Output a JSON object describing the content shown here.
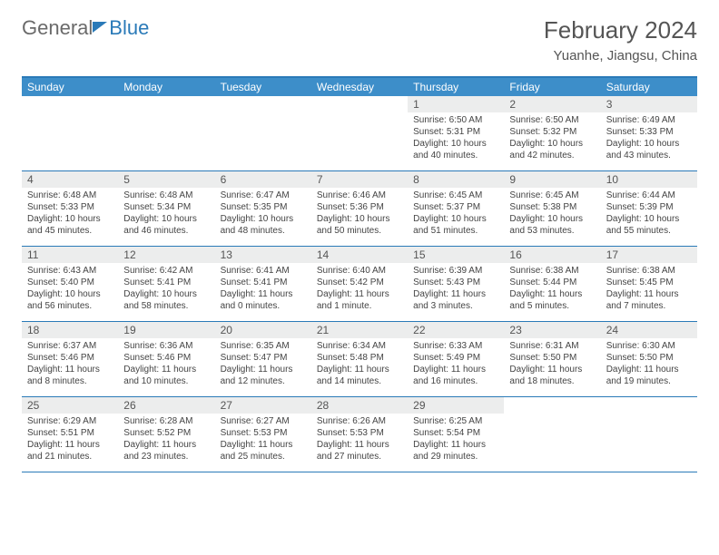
{
  "logo": {
    "text1": "General",
    "text2": "Blue"
  },
  "title": "February 2024",
  "location": "Yuanhe, Jiangsu, China",
  "dayNames": [
    "Sunday",
    "Monday",
    "Tuesday",
    "Wednesday",
    "Thursday",
    "Friday",
    "Saturday"
  ],
  "colors": {
    "header_bar": "#3d8ec9",
    "accent": "#2a7ab8",
    "daynum_bg": "#eceded",
    "text": "#555555"
  },
  "weeks": [
    [
      {
        "n": "",
        "sunrise": "",
        "sunset": "",
        "daylight": ""
      },
      {
        "n": "",
        "sunrise": "",
        "sunset": "",
        "daylight": ""
      },
      {
        "n": "",
        "sunrise": "",
        "sunset": "",
        "daylight": ""
      },
      {
        "n": "",
        "sunrise": "",
        "sunset": "",
        "daylight": ""
      },
      {
        "n": "1",
        "sunrise": "Sunrise: 6:50 AM",
        "sunset": "Sunset: 5:31 PM",
        "daylight": "Daylight: 10 hours and 40 minutes."
      },
      {
        "n": "2",
        "sunrise": "Sunrise: 6:50 AM",
        "sunset": "Sunset: 5:32 PM",
        "daylight": "Daylight: 10 hours and 42 minutes."
      },
      {
        "n": "3",
        "sunrise": "Sunrise: 6:49 AM",
        "sunset": "Sunset: 5:33 PM",
        "daylight": "Daylight: 10 hours and 43 minutes."
      }
    ],
    [
      {
        "n": "4",
        "sunrise": "Sunrise: 6:48 AM",
        "sunset": "Sunset: 5:33 PM",
        "daylight": "Daylight: 10 hours and 45 minutes."
      },
      {
        "n": "5",
        "sunrise": "Sunrise: 6:48 AM",
        "sunset": "Sunset: 5:34 PM",
        "daylight": "Daylight: 10 hours and 46 minutes."
      },
      {
        "n": "6",
        "sunrise": "Sunrise: 6:47 AM",
        "sunset": "Sunset: 5:35 PM",
        "daylight": "Daylight: 10 hours and 48 minutes."
      },
      {
        "n": "7",
        "sunrise": "Sunrise: 6:46 AM",
        "sunset": "Sunset: 5:36 PM",
        "daylight": "Daylight: 10 hours and 50 minutes."
      },
      {
        "n": "8",
        "sunrise": "Sunrise: 6:45 AM",
        "sunset": "Sunset: 5:37 PM",
        "daylight": "Daylight: 10 hours and 51 minutes."
      },
      {
        "n": "9",
        "sunrise": "Sunrise: 6:45 AM",
        "sunset": "Sunset: 5:38 PM",
        "daylight": "Daylight: 10 hours and 53 minutes."
      },
      {
        "n": "10",
        "sunrise": "Sunrise: 6:44 AM",
        "sunset": "Sunset: 5:39 PM",
        "daylight": "Daylight: 10 hours and 55 minutes."
      }
    ],
    [
      {
        "n": "11",
        "sunrise": "Sunrise: 6:43 AM",
        "sunset": "Sunset: 5:40 PM",
        "daylight": "Daylight: 10 hours and 56 minutes."
      },
      {
        "n": "12",
        "sunrise": "Sunrise: 6:42 AM",
        "sunset": "Sunset: 5:41 PM",
        "daylight": "Daylight: 10 hours and 58 minutes."
      },
      {
        "n": "13",
        "sunrise": "Sunrise: 6:41 AM",
        "sunset": "Sunset: 5:41 PM",
        "daylight": "Daylight: 11 hours and 0 minutes."
      },
      {
        "n": "14",
        "sunrise": "Sunrise: 6:40 AM",
        "sunset": "Sunset: 5:42 PM",
        "daylight": "Daylight: 11 hours and 1 minute."
      },
      {
        "n": "15",
        "sunrise": "Sunrise: 6:39 AM",
        "sunset": "Sunset: 5:43 PM",
        "daylight": "Daylight: 11 hours and 3 minutes."
      },
      {
        "n": "16",
        "sunrise": "Sunrise: 6:38 AM",
        "sunset": "Sunset: 5:44 PM",
        "daylight": "Daylight: 11 hours and 5 minutes."
      },
      {
        "n": "17",
        "sunrise": "Sunrise: 6:38 AM",
        "sunset": "Sunset: 5:45 PM",
        "daylight": "Daylight: 11 hours and 7 minutes."
      }
    ],
    [
      {
        "n": "18",
        "sunrise": "Sunrise: 6:37 AM",
        "sunset": "Sunset: 5:46 PM",
        "daylight": "Daylight: 11 hours and 8 minutes."
      },
      {
        "n": "19",
        "sunrise": "Sunrise: 6:36 AM",
        "sunset": "Sunset: 5:46 PM",
        "daylight": "Daylight: 11 hours and 10 minutes."
      },
      {
        "n": "20",
        "sunrise": "Sunrise: 6:35 AM",
        "sunset": "Sunset: 5:47 PM",
        "daylight": "Daylight: 11 hours and 12 minutes."
      },
      {
        "n": "21",
        "sunrise": "Sunrise: 6:34 AM",
        "sunset": "Sunset: 5:48 PM",
        "daylight": "Daylight: 11 hours and 14 minutes."
      },
      {
        "n": "22",
        "sunrise": "Sunrise: 6:33 AM",
        "sunset": "Sunset: 5:49 PM",
        "daylight": "Daylight: 11 hours and 16 minutes."
      },
      {
        "n": "23",
        "sunrise": "Sunrise: 6:31 AM",
        "sunset": "Sunset: 5:50 PM",
        "daylight": "Daylight: 11 hours and 18 minutes."
      },
      {
        "n": "24",
        "sunrise": "Sunrise: 6:30 AM",
        "sunset": "Sunset: 5:50 PM",
        "daylight": "Daylight: 11 hours and 19 minutes."
      }
    ],
    [
      {
        "n": "25",
        "sunrise": "Sunrise: 6:29 AM",
        "sunset": "Sunset: 5:51 PM",
        "daylight": "Daylight: 11 hours and 21 minutes."
      },
      {
        "n": "26",
        "sunrise": "Sunrise: 6:28 AM",
        "sunset": "Sunset: 5:52 PM",
        "daylight": "Daylight: 11 hours and 23 minutes."
      },
      {
        "n": "27",
        "sunrise": "Sunrise: 6:27 AM",
        "sunset": "Sunset: 5:53 PM",
        "daylight": "Daylight: 11 hours and 25 minutes."
      },
      {
        "n": "28",
        "sunrise": "Sunrise: 6:26 AM",
        "sunset": "Sunset: 5:53 PM",
        "daylight": "Daylight: 11 hours and 27 minutes."
      },
      {
        "n": "29",
        "sunrise": "Sunrise: 6:25 AM",
        "sunset": "Sunset: 5:54 PM",
        "daylight": "Daylight: 11 hours and 29 minutes."
      },
      {
        "n": "",
        "sunrise": "",
        "sunset": "",
        "daylight": ""
      },
      {
        "n": "",
        "sunrise": "",
        "sunset": "",
        "daylight": ""
      }
    ]
  ]
}
